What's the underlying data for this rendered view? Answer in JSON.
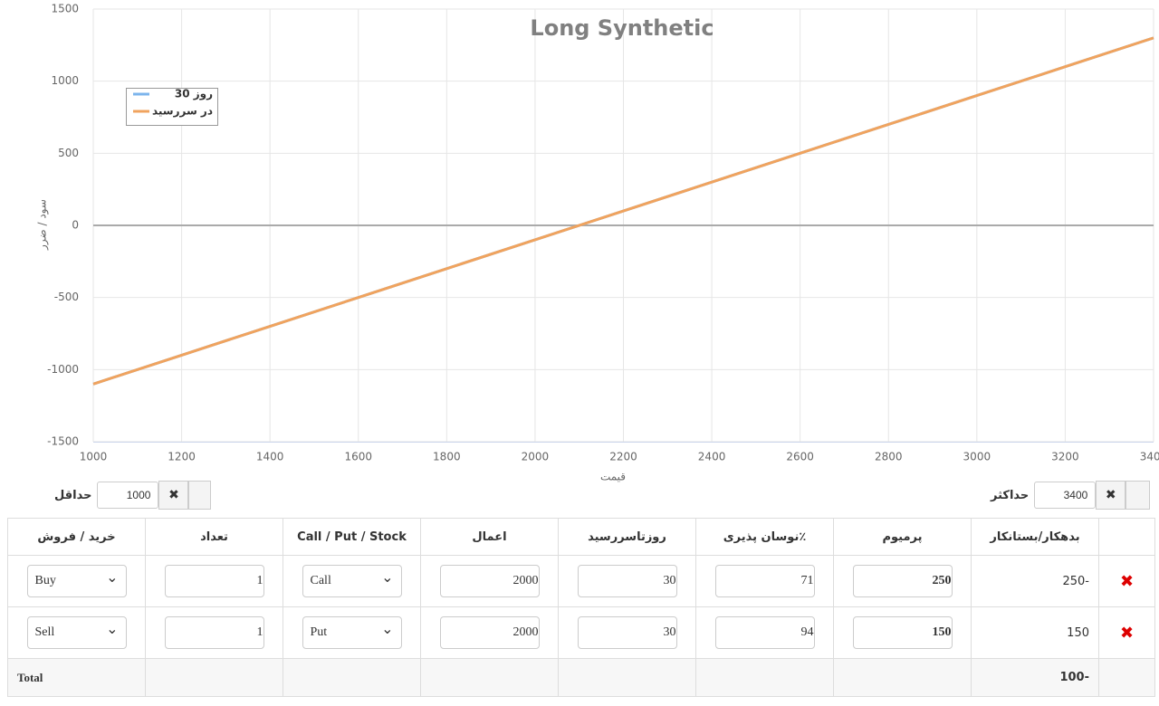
{
  "chart_data": {
    "type": "line",
    "title": "Long Synthetic",
    "x_label": "قیمت",
    "y_label": "سود / ضرر",
    "x": [
      1000,
      1200,
      1400,
      1600,
      1800,
      2000,
      2200,
      2400,
      2600,
      2800,
      3000,
      3200,
      3400
    ],
    "series": [
      {
        "name": "روز 30",
        "color": "#7cb5ec",
        "values": [
          -1100,
          -900,
          -700,
          -500,
          -300,
          -100,
          100,
          300,
          500,
          700,
          900,
          1100,
          1300
        ]
      },
      {
        "name": "در سررسید",
        "color": "#f0a35e",
        "values": [
          -1100,
          -900,
          -700,
          -500,
          -300,
          -100,
          100,
          300,
          500,
          700,
          900,
          1100,
          1300
        ]
      }
    ],
    "xlim": [
      1000,
      3400
    ],
    "xticks": [
      1000,
      1200,
      1400,
      1600,
      1800,
      2000,
      2200,
      2400,
      2600,
      2800,
      3000,
      3200,
      3400
    ],
    "ylim": [
      -1500,
      1500
    ],
    "yticks": [
      -1500,
      -1000,
      -500,
      0,
      500,
      1000,
      1500
    ],
    "grid": true,
    "legend": "top-left"
  },
  "controls": {
    "max_label": "حداکثر",
    "max_value": 3400,
    "min_label": "حداقل",
    "min_value": 1000
  },
  "table": {
    "headers": [
      "بدهکار/بستانکار",
      "پرمیوم",
      "٪نوسان پذیری",
      "روزتاسررسید",
      "اعمال",
      "Call / Put / Stock",
      "تعداد",
      "خرید / فروش"
    ],
    "rows": [
      {
        "balance": -250,
        "premium": 250,
        "volatility": 71,
        "days": 30,
        "strike": 2000,
        "type": "Call",
        "quantity": 1,
        "side": "Buy"
      },
      {
        "balance": 150,
        "premium": 150,
        "volatility": 94,
        "days": 30,
        "strike": 2000,
        "type": "Put",
        "quantity": 1,
        "side": "Sell"
      }
    ],
    "total_label": "Total",
    "total": -100
  }
}
